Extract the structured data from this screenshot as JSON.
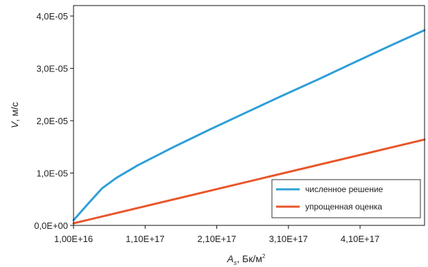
{
  "chart_data": {
    "type": "line",
    "xlabel": "A",
    "xlabel_subscript": "s",
    "xlabel_units": ", Бк/м",
    "xlabel_superscript": "2",
    "ylabel_var": "V",
    "ylabel_units": ", м/с",
    "xlim": [
      1e+16,
      5e+17
    ],
    "ylim": [
      0,
      4.2e-05
    ],
    "x_ticks": [
      {
        "value": 1e+16,
        "label": "1,00E+16"
      },
      {
        "value": 1.1e+17,
        "label": "1,10E+17"
      },
      {
        "value": 2.1e+17,
        "label": "2,10E+17"
      },
      {
        "value": 3.1e+17,
        "label": "3,10E+17"
      },
      {
        "value": 4.1e+17,
        "label": "4,10E+17"
      }
    ],
    "y_ticks": [
      {
        "value": 0.0,
        "label": "0,0E+00"
      },
      {
        "value": 1e-05,
        "label": "1,0E-05"
      },
      {
        "value": 2e-05,
        "label": "2,0E-05"
      },
      {
        "value": 3e-05,
        "label": "3,0E-05"
      },
      {
        "value": 4e-05,
        "label": "4,0E-05"
      }
    ],
    "grid": false,
    "legend_position": "bottom-right",
    "series": [
      {
        "name": "численное решение",
        "color": "#2e9fd8",
        "x": [
          1e+16,
          3e+16,
          5e+16,
          7e+16,
          1e+17,
          1.5e+17,
          2e+17,
          2.5e+17,
          3e+17,
          3.5e+17,
          4e+17,
          4.5e+17,
          5e+17
        ],
        "y": [
          1e-06,
          4.1e-06,
          7.1e-06,
          9.1e-06,
          1.15e-05,
          1.5e-05,
          1.83e-05,
          2.15e-05,
          2.47e-05,
          2.78e-05,
          3.1e-05,
          3.42e-05,
          3.73e-05
        ]
      },
      {
        "name": "упрощенная оценка",
        "color": "#e8562a",
        "x": [
          1e+16,
          5e+17
        ],
        "y": [
          4e-07,
          1.64e-05
        ]
      }
    ]
  }
}
